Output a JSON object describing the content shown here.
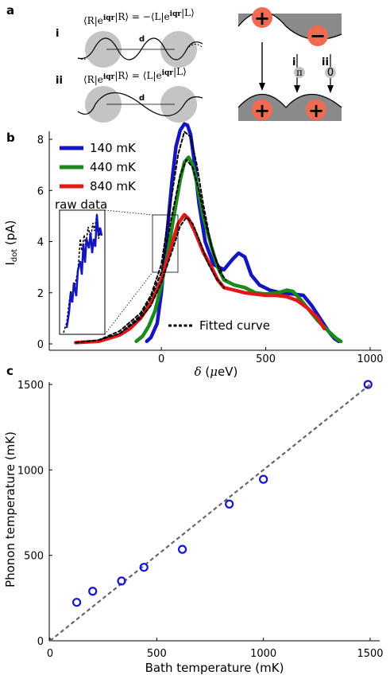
{
  "panel_a": {
    "letter": "a",
    "row_i": {
      "label": "i",
      "equation": "⟨R|e^{iqr}|R⟩ = −⟨L|e^{iqr}|L⟩",
      "distance": "d"
    },
    "row_ii": {
      "label": "ii",
      "equation": "⟨R|e^{iqr}|R⟩ = ⟨L|e^{iqr}|L⟩",
      "distance": "d"
    },
    "diagram": {
      "plus": "+",
      "minus": "−",
      "path_i": "i",
      "path_ii": "ii",
      "phase_i": "π",
      "phase_ii": "0"
    }
  },
  "chart_data": [
    {
      "panel": "b",
      "type": "line",
      "xlabel": "δ (μeV)",
      "ylabel": "I_dot (pA)",
      "xlim": [
        -450,
        1000
      ],
      "ylim": [
        0,
        9
      ],
      "xticks": [
        0,
        500,
        1000
      ],
      "yticks": [
        0,
        2,
        4,
        6,
        8
      ],
      "legend": {
        "placement": "top-left",
        "fit_label": "Fitted curve"
      },
      "inset_label": "raw data",
      "series": [
        {
          "name": "140 mK",
          "color": "#1515c0",
          "x": [
            -70,
            -50,
            -20,
            0,
            20,
            50,
            70,
            90,
            110,
            125,
            140,
            160,
            180,
            210,
            250,
            300,
            340,
            370,
            400,
            430,
            470,
            520,
            570,
            630,
            680,
            720,
            760,
            800,
            830,
            850
          ],
          "y": [
            0.1,
            0.25,
            0.8,
            2.0,
            3.7,
            6.3,
            7.7,
            8.35,
            8.6,
            8.55,
            8.2,
            7.0,
            5.5,
            4.0,
            3.1,
            2.9,
            3.3,
            3.55,
            3.4,
            2.7,
            2.3,
            2.1,
            2.0,
            1.95,
            1.9,
            1.5,
            1.0,
            0.5,
            0.2,
            0.1
          ]
        },
        {
          "name": "440 mK",
          "color": "#1b8a1b",
          "x": [
            -120,
            -90,
            -60,
            -30,
            0,
            30,
            60,
            90,
            110,
            130,
            150,
            170,
            200,
            240,
            270,
            300,
            350,
            400,
            450,
            500,
            560,
            600,
            630,
            660,
            700,
            750,
            800,
            840,
            860
          ],
          "y": [
            0.1,
            0.3,
            0.7,
            1.3,
            2.3,
            3.5,
            5.0,
            6.4,
            7.1,
            7.3,
            7.0,
            6.3,
            5.0,
            3.8,
            3.0,
            2.5,
            2.3,
            2.2,
            2.0,
            1.95,
            2.0,
            2.1,
            2.05,
            1.8,
            1.4,
            0.9,
            0.5,
            0.2,
            0.1
          ]
        },
        {
          "name": "840 mK",
          "color": "#e01818",
          "x": [
            -410,
            -300,
            -200,
            -150,
            -100,
            -50,
            0,
            40,
            80,
            110,
            130,
            160,
            200,
            240,
            270,
            300,
            350,
            400,
            450,
            500,
            550,
            600,
            650,
            700,
            750,
            780
          ],
          "y": [
            0.05,
            0.1,
            0.35,
            0.6,
            1.0,
            1.6,
            2.5,
            3.6,
            4.7,
            5.05,
            4.9,
            4.4,
            3.6,
            3.0,
            2.5,
            2.2,
            2.1,
            2.0,
            1.95,
            1.9,
            1.9,
            1.85,
            1.7,
            1.4,
            1.0,
            0.6
          ]
        },
        {
          "name": "Fitted curve",
          "color": "#000000",
          "dashed": true,
          "x": [
            -410,
            -300,
            -200,
            -100,
            -50,
            0,
            50,
            80,
            110,
            140,
            170,
            200,
            240,
            280,
            310
          ],
          "y": [
            0.05,
            0.15,
            0.5,
            1.2,
            1.9,
            3.1,
            5.8,
            7.4,
            8.3,
            8.1,
            7.0,
            5.5,
            3.8,
            2.8,
            2.5
          ]
        },
        {
          "name": "fit-440",
          "color": "#000000",
          "dashed": true,
          "unnamed": true,
          "x": [
            -200,
            -100,
            -50,
            0,
            50,
            90,
            120,
            150,
            180,
            210,
            250,
            290
          ],
          "y": [
            0.4,
            1.1,
            1.8,
            2.8,
            5.0,
            6.6,
            7.2,
            6.9,
            6.0,
            4.8,
            3.5,
            2.8
          ]
        },
        {
          "name": "fit-840",
          "color": "#000000",
          "dashed": true,
          "unnamed": true,
          "x": [
            -300,
            -200,
            -100,
            -50,
            0,
            50,
            90,
            120,
            150,
            180,
            220,
            260,
            300
          ],
          "y": [
            0.15,
            0.4,
            1.0,
            1.5,
            2.4,
            3.6,
            4.6,
            4.95,
            4.7,
            4.1,
            3.2,
            2.6,
            2.2
          ]
        }
      ]
    },
    {
      "panel": "c",
      "type": "scatter",
      "xlabel": "Bath temperature (mK)",
      "ylabel": "Phonon temperature (mK)",
      "xlim": [
        0,
        1500
      ],
      "ylim": [
        0,
        1500
      ],
      "xticks": [
        0,
        500,
        1000,
        1500
      ],
      "yticks": [
        0,
        500,
        1000,
        1500
      ],
      "marker_color": "#1515d0",
      "points": {
        "x": [
          125,
          200,
          335,
          440,
          620,
          840,
          1000,
          1490
        ],
        "y": [
          225,
          290,
          350,
          430,
          535,
          800,
          945,
          1500
        ]
      },
      "reference_line": {
        "x": [
          0,
          1500
        ],
        "y": [
          0,
          1500
        ],
        "style": "dashed",
        "color": "#666666"
      }
    }
  ]
}
